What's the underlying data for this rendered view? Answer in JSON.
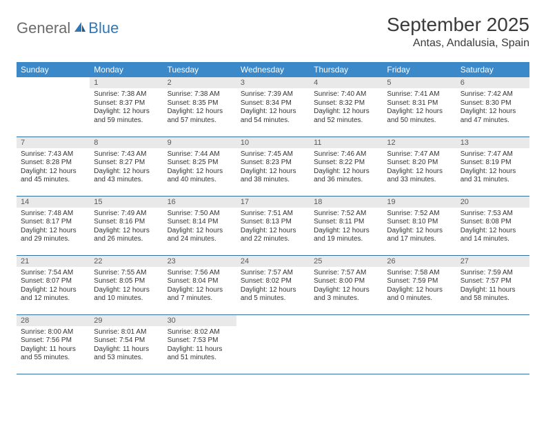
{
  "logo": {
    "general": "General",
    "blue": "Blue"
  },
  "title": "September 2025",
  "location": "Antas, Andalusia, Spain",
  "colors": {
    "header_bg": "#3b89c9",
    "header_text": "#ffffff",
    "daynum_bg": "#e9e9e9",
    "daynum_text": "#5a5a5a",
    "body_text": "#333333",
    "border": "#2f6fa3",
    "logo_gray": "#6b6b6b",
    "logo_blue": "#2f78b8"
  },
  "weekdays": [
    "Sunday",
    "Monday",
    "Tuesday",
    "Wednesday",
    "Thursday",
    "Friday",
    "Saturday"
  ],
  "weeks": [
    [
      null,
      {
        "n": "1",
        "sr": "Sunrise: 7:38 AM",
        "ss": "Sunset: 8:37 PM",
        "dl": "Daylight: 12 hours and 59 minutes."
      },
      {
        "n": "2",
        "sr": "Sunrise: 7:38 AM",
        "ss": "Sunset: 8:35 PM",
        "dl": "Daylight: 12 hours and 57 minutes."
      },
      {
        "n": "3",
        "sr": "Sunrise: 7:39 AM",
        "ss": "Sunset: 8:34 PM",
        "dl": "Daylight: 12 hours and 54 minutes."
      },
      {
        "n": "4",
        "sr": "Sunrise: 7:40 AM",
        "ss": "Sunset: 8:32 PM",
        "dl": "Daylight: 12 hours and 52 minutes."
      },
      {
        "n": "5",
        "sr": "Sunrise: 7:41 AM",
        "ss": "Sunset: 8:31 PM",
        "dl": "Daylight: 12 hours and 50 minutes."
      },
      {
        "n": "6",
        "sr": "Sunrise: 7:42 AM",
        "ss": "Sunset: 8:30 PM",
        "dl": "Daylight: 12 hours and 47 minutes."
      }
    ],
    [
      {
        "n": "7",
        "sr": "Sunrise: 7:43 AM",
        "ss": "Sunset: 8:28 PM",
        "dl": "Daylight: 12 hours and 45 minutes."
      },
      {
        "n": "8",
        "sr": "Sunrise: 7:43 AM",
        "ss": "Sunset: 8:27 PM",
        "dl": "Daylight: 12 hours and 43 minutes."
      },
      {
        "n": "9",
        "sr": "Sunrise: 7:44 AM",
        "ss": "Sunset: 8:25 PM",
        "dl": "Daylight: 12 hours and 40 minutes."
      },
      {
        "n": "10",
        "sr": "Sunrise: 7:45 AM",
        "ss": "Sunset: 8:23 PM",
        "dl": "Daylight: 12 hours and 38 minutes."
      },
      {
        "n": "11",
        "sr": "Sunrise: 7:46 AM",
        "ss": "Sunset: 8:22 PM",
        "dl": "Daylight: 12 hours and 36 minutes."
      },
      {
        "n": "12",
        "sr": "Sunrise: 7:47 AM",
        "ss": "Sunset: 8:20 PM",
        "dl": "Daylight: 12 hours and 33 minutes."
      },
      {
        "n": "13",
        "sr": "Sunrise: 7:47 AM",
        "ss": "Sunset: 8:19 PM",
        "dl": "Daylight: 12 hours and 31 minutes."
      }
    ],
    [
      {
        "n": "14",
        "sr": "Sunrise: 7:48 AM",
        "ss": "Sunset: 8:17 PM",
        "dl": "Daylight: 12 hours and 29 minutes."
      },
      {
        "n": "15",
        "sr": "Sunrise: 7:49 AM",
        "ss": "Sunset: 8:16 PM",
        "dl": "Daylight: 12 hours and 26 minutes."
      },
      {
        "n": "16",
        "sr": "Sunrise: 7:50 AM",
        "ss": "Sunset: 8:14 PM",
        "dl": "Daylight: 12 hours and 24 minutes."
      },
      {
        "n": "17",
        "sr": "Sunrise: 7:51 AM",
        "ss": "Sunset: 8:13 PM",
        "dl": "Daylight: 12 hours and 22 minutes."
      },
      {
        "n": "18",
        "sr": "Sunrise: 7:52 AM",
        "ss": "Sunset: 8:11 PM",
        "dl": "Daylight: 12 hours and 19 minutes."
      },
      {
        "n": "19",
        "sr": "Sunrise: 7:52 AM",
        "ss": "Sunset: 8:10 PM",
        "dl": "Daylight: 12 hours and 17 minutes."
      },
      {
        "n": "20",
        "sr": "Sunrise: 7:53 AM",
        "ss": "Sunset: 8:08 PM",
        "dl": "Daylight: 12 hours and 14 minutes."
      }
    ],
    [
      {
        "n": "21",
        "sr": "Sunrise: 7:54 AM",
        "ss": "Sunset: 8:07 PM",
        "dl": "Daylight: 12 hours and 12 minutes."
      },
      {
        "n": "22",
        "sr": "Sunrise: 7:55 AM",
        "ss": "Sunset: 8:05 PM",
        "dl": "Daylight: 12 hours and 10 minutes."
      },
      {
        "n": "23",
        "sr": "Sunrise: 7:56 AM",
        "ss": "Sunset: 8:04 PM",
        "dl": "Daylight: 12 hours and 7 minutes."
      },
      {
        "n": "24",
        "sr": "Sunrise: 7:57 AM",
        "ss": "Sunset: 8:02 PM",
        "dl": "Daylight: 12 hours and 5 minutes."
      },
      {
        "n": "25",
        "sr": "Sunrise: 7:57 AM",
        "ss": "Sunset: 8:00 PM",
        "dl": "Daylight: 12 hours and 3 minutes."
      },
      {
        "n": "26",
        "sr": "Sunrise: 7:58 AM",
        "ss": "Sunset: 7:59 PM",
        "dl": "Daylight: 12 hours and 0 minutes."
      },
      {
        "n": "27",
        "sr": "Sunrise: 7:59 AM",
        "ss": "Sunset: 7:57 PM",
        "dl": "Daylight: 11 hours and 58 minutes."
      }
    ],
    [
      {
        "n": "28",
        "sr": "Sunrise: 8:00 AM",
        "ss": "Sunset: 7:56 PM",
        "dl": "Daylight: 11 hours and 55 minutes."
      },
      {
        "n": "29",
        "sr": "Sunrise: 8:01 AM",
        "ss": "Sunset: 7:54 PM",
        "dl": "Daylight: 11 hours and 53 minutes."
      },
      {
        "n": "30",
        "sr": "Sunrise: 8:02 AM",
        "ss": "Sunset: 7:53 PM",
        "dl": "Daylight: 11 hours and 51 minutes."
      },
      null,
      null,
      null,
      null
    ]
  ]
}
